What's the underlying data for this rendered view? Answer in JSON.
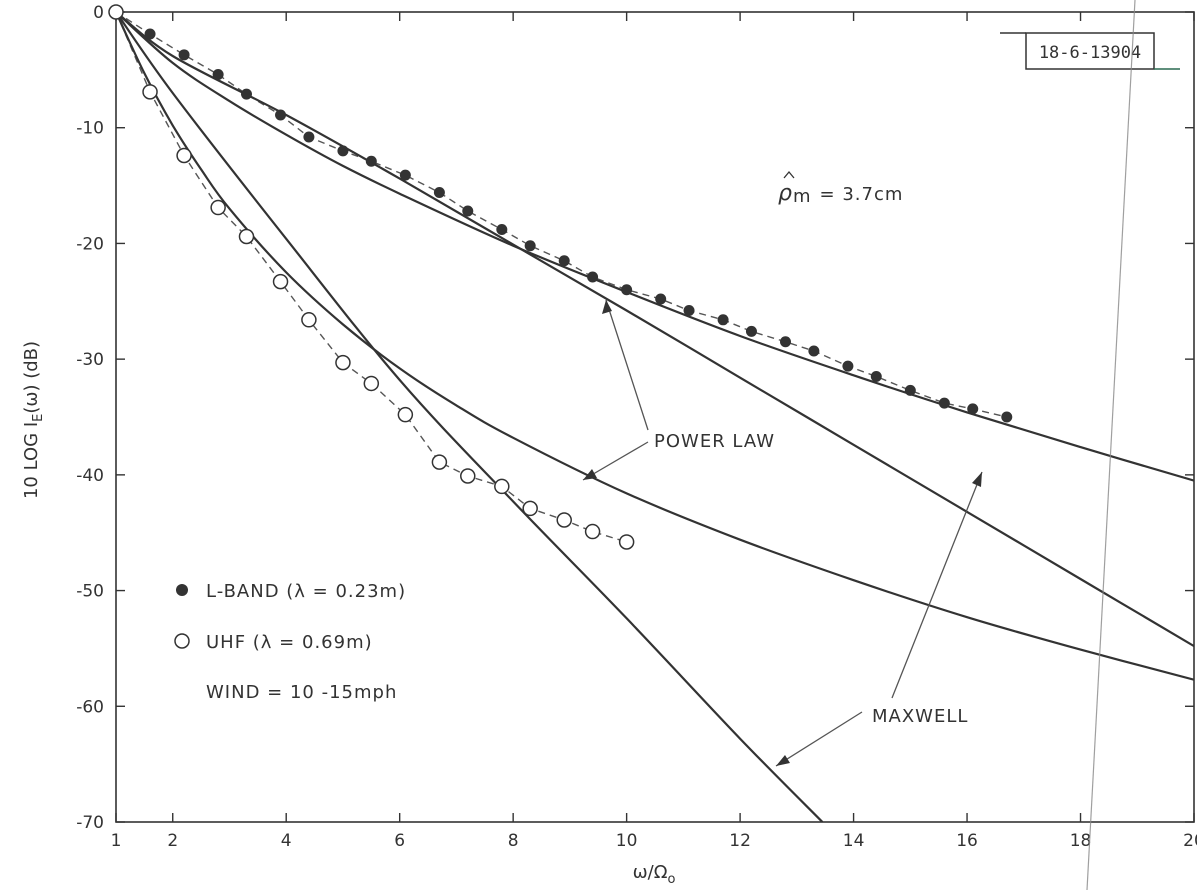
{
  "chart_data": {
    "type": "line",
    "xlabel": "ω/Ω",
    "xlabel_sub": "o",
    "ylabel": "10 LOG I",
    "ylabel_sub": "E",
    "ylabel_tail": "(ω) (dB)",
    "xlim": [
      1,
      20
    ],
    "ylim": [
      -70,
      0
    ],
    "x_ticks": [
      1,
      2,
      4,
      6,
      8,
      10,
      12,
      14,
      16,
      18,
      20
    ],
    "x_tick_labels": [
      "1",
      "2",
      "4",
      "6",
      "8",
      "10",
      "12",
      "14",
      "16",
      "18",
      "20"
    ],
    "y_ticks": [
      0,
      -10,
      -20,
      -30,
      -40,
      -50,
      -60,
      -70
    ],
    "y_tick_labels": [
      "0",
      "-10",
      "-20",
      "-30",
      "-40",
      "-50",
      "-60",
      "-70"
    ],
    "grid": false,
    "legend_position": "lower-left",
    "series": [
      {
        "name": "L-BAND (λ = 0.23m)",
        "marker": "filled-circle",
        "style": "dashed",
        "x": [
          1.0,
          1.6,
          2.2,
          2.8,
          3.3,
          3.9,
          4.4,
          5.0,
          5.5,
          6.1,
          6.7,
          7.2,
          7.8,
          8.3,
          8.9,
          9.4,
          10.0,
          10.6,
          11.1,
          11.7,
          12.2,
          12.8,
          13.3,
          13.9,
          14.4,
          15.0,
          15.6,
          16.1,
          16.7
        ],
        "y": [
          0.0,
          -1.9,
          -3.7,
          -5.4,
          -7.1,
          -8.9,
          -10.8,
          -12.0,
          -12.9,
          -14.1,
          -15.6,
          -17.2,
          -18.8,
          -20.2,
          -21.5,
          -22.9,
          -24.0,
          -24.8,
          -25.8,
          -26.6,
          -27.6,
          -28.5,
          -29.3,
          -30.6,
          -31.5,
          -32.7,
          -33.8,
          -34.3,
          -35.0
        ]
      },
      {
        "name": "UHF (λ = 0.69m)",
        "marker": "open-circle",
        "style": "dashed",
        "x": [
          1.0,
          1.6,
          2.2,
          2.8,
          3.3,
          3.9,
          4.4,
          5.0,
          5.5,
          6.1,
          6.7,
          7.2,
          7.8,
          8.3,
          8.9,
          9.4,
          10.0
        ],
        "y": [
          0.0,
          -6.9,
          -12.4,
          -16.9,
          -19.4,
          -23.3,
          -26.6,
          -30.3,
          -32.1,
          -34.8,
          -38.9,
          -40.1,
          -41.0,
          -42.9,
          -43.9,
          -44.9,
          -45.8
        ]
      },
      {
        "name": "POWER LAW",
        "style": "solid",
        "x": [
          1.0,
          2,
          3,
          4,
          5,
          6,
          8,
          10,
          12,
          14,
          16,
          18,
          20
        ],
        "y": [
          0.0,
          -4.4,
          -7.7,
          -10.6,
          -13.3,
          -15.7,
          -20.2,
          -24.2,
          -28.0,
          -31.4,
          -34.6,
          -37.6,
          -40.5
        ]
      },
      {
        "name": "POWER LAW",
        "style": "solid",
        "x": [
          1.0,
          1.5,
          2,
          2.5,
          3,
          4,
          5,
          6,
          7,
          8,
          10,
          12,
          14,
          16,
          18,
          20
        ],
        "y": [
          0.0,
          -5.3,
          -9.8,
          -13.6,
          -17.0,
          -22.5,
          -27.0,
          -30.8,
          -34.0,
          -36.8,
          -41.6,
          -45.6,
          -49.1,
          -52.3,
          -55.1,
          -57.7
        ]
      },
      {
        "name": "MAXWELL",
        "style": "solid",
        "x": [
          1.0,
          2,
          4,
          6,
          8,
          10,
          12,
          14,
          16,
          18,
          20
        ],
        "y": [
          0.0,
          -3.8,
          -8.9,
          -14.4,
          -20.1,
          -25.8,
          -31.6,
          -37.4,
          -43.2,
          -49.0,
          -54.8
        ]
      },
      {
        "name": "MAXWELL",
        "style": "solid",
        "x": [
          1.0,
          2,
          4,
          6,
          8,
          10,
          12,
          13.45
        ],
        "y": [
          0.0,
          -7.0,
          -19.6,
          -31.8,
          -42.3,
          -52.4,
          -62.8,
          -70.0
        ]
      }
    ],
    "annotations": {
      "power_law": "POWER LAW",
      "maxwell": "MAXWELL",
      "rho_symbol": "ρ",
      "rho_sub": "m",
      "rho_value": "= 3.7cm",
      "wind": "WIND = 10 -15mph",
      "stamp": "18-6-13904"
    },
    "colors": {
      "ink": "#333333",
      "paper": "#ffffff"
    }
  }
}
